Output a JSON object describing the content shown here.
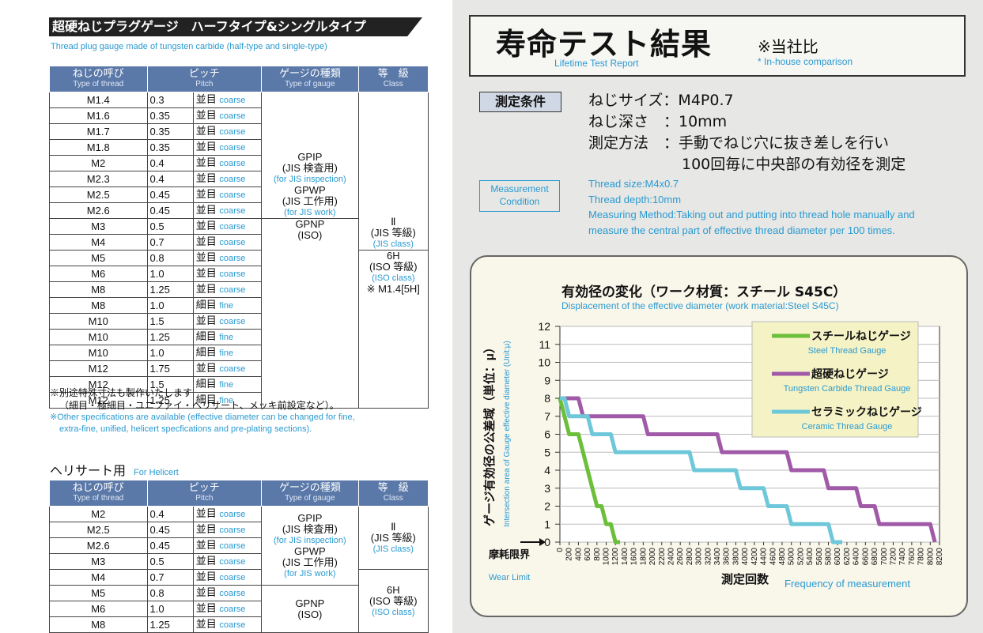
{
  "left": {
    "title": "超硬ねじプラグゲージ　ハーフタイプ&シングルタイプ",
    "subtitle": "Thread plug gauge made of tungsten carbide (half-type and single-type)",
    "headers": {
      "type_jp": "ねじの呼び",
      "type_en": "Type of thread",
      "pitch_jp": "ピッチ",
      "pitch_en": "Pitch",
      "gauge_jp": "ゲージの種類",
      "gauge_en": "Type of gauge",
      "class_jp": "等　級",
      "class_en": "Class"
    },
    "rows": [
      {
        "thread": "M1.4",
        "pitch": "0.3",
        "jp": "並目",
        "en": "coarse"
      },
      {
        "thread": "M1.6",
        "pitch": "0.35",
        "jp": "並目",
        "en": "coarse"
      },
      {
        "thread": "M1.7",
        "pitch": "0.35",
        "jp": "並目",
        "en": "coarse"
      },
      {
        "thread": "M1.8",
        "pitch": "0.35",
        "jp": "並目",
        "en": "coarse"
      },
      {
        "thread": "M2",
        "pitch": "0.4",
        "jp": "並目",
        "en": "coarse"
      },
      {
        "thread": "M2.3",
        "pitch": "0.4",
        "jp": "並目",
        "en": "coarse"
      },
      {
        "thread": "M2.5",
        "pitch": "0.45",
        "jp": "並目",
        "en": "coarse"
      },
      {
        "thread": "M2.6",
        "pitch": "0.45",
        "jp": "並目",
        "en": "coarse"
      },
      {
        "thread": "M3",
        "pitch": "0.5",
        "jp": "並目",
        "en": "coarse"
      },
      {
        "thread": "M4",
        "pitch": "0.7",
        "jp": "並目",
        "en": "coarse"
      },
      {
        "thread": "M5",
        "pitch": "0.8",
        "jp": "並目",
        "en": "coarse"
      },
      {
        "thread": "M6",
        "pitch": "1.0",
        "jp": "並目",
        "en": "coarse"
      },
      {
        "thread": "M8",
        "pitch": "1.25",
        "jp": "並目",
        "en": "coarse"
      },
      {
        "thread": "M8",
        "pitch": "1.0",
        "jp": "細目",
        "en": "fine"
      },
      {
        "thread": "M10",
        "pitch": "1.5",
        "jp": "並目",
        "en": "coarse"
      },
      {
        "thread": "M10",
        "pitch": "1.25",
        "jp": "細目",
        "en": "fine"
      },
      {
        "thread": "M10",
        "pitch": "1.0",
        "jp": "細目",
        "en": "fine"
      },
      {
        "thread": "M12",
        "pitch": "1.75",
        "jp": "並目",
        "en": "coarse"
      },
      {
        "thread": "M12",
        "pitch": "1.5",
        "jp": "細目",
        "en": "fine"
      },
      {
        "thread": "M12",
        "pitch": "1.25",
        "jp": "細目",
        "en": "fine"
      }
    ],
    "gauge_a": {
      "l1": "GPIP",
      "l2": "(JIS 検査用)",
      "l3": "(for JIS inspection)",
      "l4": "GPWP",
      "l5": "(JIS 工作用)",
      "l6": "(for JIS work)"
    },
    "gauge_b": {
      "l1": "GPNP",
      "l2": "(ISO)"
    },
    "class_a": {
      "l1": "Ⅱ",
      "l2": "(JIS 等級)",
      "l3": "(JIS class)"
    },
    "class_b": {
      "l1": "6H",
      "l2": "(ISO 等級)",
      "l3": "(ISO class)",
      "l4": "※ M1.4[5H]"
    },
    "notes": {
      "jp1": "※別途特殊寸法も製作いたします",
      "jp2": "（細目・極細目・ユニファイ・ヘリサート、メッキ前設定など）。",
      "en1": "※Other specifications are available (effective diameter can be changed for fine,",
      "en2": "extra-fine, unified, helicert specfications and pre-plating sections)."
    },
    "helicert": {
      "jp": "ヘリサート用",
      "en": "For Helicert"
    },
    "heli_rows": [
      {
        "thread": "M2",
        "pitch": "0.4",
        "jp": "並目",
        "en": "coarse"
      },
      {
        "thread": "M2.5",
        "pitch": "0.45",
        "jp": "並目",
        "en": "coarse"
      },
      {
        "thread": "M2.6",
        "pitch": "0.45",
        "jp": "並目",
        "en": "coarse"
      },
      {
        "thread": "M3",
        "pitch": "0.5",
        "jp": "並目",
        "en": "coarse"
      },
      {
        "thread": "M4",
        "pitch": "0.7",
        "jp": "並目",
        "en": "coarse"
      },
      {
        "thread": "M5",
        "pitch": "0.8",
        "jp": "並目",
        "en": "coarse"
      },
      {
        "thread": "M6",
        "pitch": "1.0",
        "jp": "並目",
        "en": "coarse"
      },
      {
        "thread": "M8",
        "pitch": "1.25",
        "jp": "並目",
        "en": "coarse"
      }
    ],
    "heli_class_b": {
      "l1": "6H",
      "l2": "(ISO 等級)",
      "l3": "(ISO class)"
    }
  },
  "right": {
    "title": "寿命テスト結果",
    "title_en": "Lifetime Test Report",
    "note": "※当社比",
    "note_en": "* In-house comparison",
    "cond_tag": "測定条件",
    "cond_lines": [
      "ねじサイズ：M4P0.7",
      "ねじ深さ　：10mm",
      "測定方法　：手動でねじ穴に抜き差しを行い",
      "100回毎に中央部の有効径を測定"
    ],
    "cond_en_tag": "Measurement Condition",
    "cond_en": [
      "Thread size:M4x0.7",
      "Thread depth:10mm",
      "Measuring Method:Taking out and putting into thread hole manually and",
      "measure the central part of effective thread diameter per 100 times."
    ]
  },
  "chart_data": {
    "type": "line",
    "title": "有効径の変化（ワーク材質：スチール S45C）",
    "subtitle": "Displacement of the effective diameter (work material:Steel S45C)",
    "ylabel": "ゲージ有効径の公差域（単位：μ）",
    "ylabel_en": "Intersection area of Gauge effective diameter (Unit:μ)",
    "xlabel": "測定回数",
    "xlabel_en": "Frequency of measurement",
    "wear_limit": "摩耗限界",
    "wear_limit_en": "Wear Limit",
    "xlim": [
      0,
      8200
    ],
    "ylim": [
      0,
      12
    ],
    "x_ticks": [
      0,
      200,
      400,
      600,
      800,
      1000,
      1200,
      1400,
      1600,
      1800,
      2000,
      2200,
      2400,
      2600,
      2800,
      3000,
      3200,
      3400,
      3600,
      3800,
      4000,
      4200,
      4400,
      4600,
      4800,
      5000,
      5200,
      5400,
      5600,
      5800,
      6000,
      6200,
      6400,
      6600,
      6800,
      7000,
      7200,
      7400,
      7600,
      7800,
      8000,
      8200
    ],
    "y_ticks": [
      0,
      1,
      2,
      3,
      4,
      5,
      6,
      7,
      8,
      9,
      10,
      11,
      12
    ],
    "legend_position": "top-right",
    "series": [
      {
        "name": "スチールねじゲージ",
        "name_en": "Steel Thread Gauge",
        "color": "#6cbf3a",
        "x": [
          0,
          100,
          200,
          300,
          400,
          500,
          600,
          700,
          800,
          900,
          1000,
          1100,
          1200,
          1300
        ],
        "y": [
          8,
          7,
          6,
          6,
          6,
          5,
          4,
          3,
          2,
          2,
          1,
          1,
          0,
          0
        ]
      },
      {
        "name": "超硬ねじゲージ",
        "name_en": "Tungsten Carbide Thread Gauge",
        "color": "#a05aa8",
        "x": [
          0,
          400,
          500,
          1800,
          1900,
          3400,
          3500,
          4900,
          5000,
          5700,
          5800,
          6400,
          6500,
          6800,
          6900,
          8000,
          8100
        ],
        "y": [
          8,
          8,
          7,
          7,
          6,
          6,
          5,
          5,
          4,
          4,
          3,
          3,
          2,
          2,
          1,
          1,
          0
        ]
      },
      {
        "name": "セラミックねじゲージ",
        "name_en": "Ceramic Thread Gauge",
        "color": "#6ec8da",
        "x": [
          0,
          100,
          200,
          600,
          700,
          1100,
          1200,
          2800,
          2900,
          3800,
          3900,
          4400,
          4500,
          4900,
          5000,
          5800,
          5900,
          6100
        ],
        "y": [
          8,
          8,
          7,
          7,
          6,
          6,
          5,
          5,
          4,
          4,
          3,
          3,
          2,
          2,
          1,
          1,
          0,
          0
        ]
      }
    ]
  }
}
